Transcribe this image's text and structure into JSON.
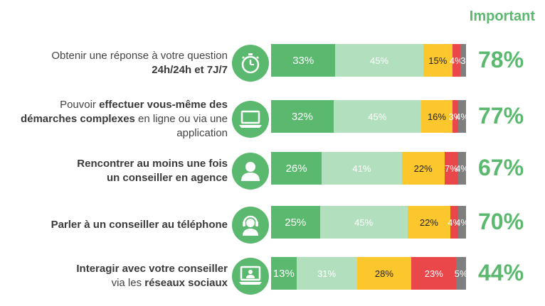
{
  "header": {
    "important": "Important"
  },
  "chart_data": {
    "type": "bar",
    "orientation": "horizontal-stacked",
    "categories": [
      "Obtenir une réponse à votre question 24h/24h et 7J/7",
      "Pouvoir effectuer vous-même des démarches complexes en ligne ou via une application",
      "Rencontrer au moins une fois un conseiller en agence",
      "Parler à un conseiller au téléphone",
      "Interagir avec votre conseiller via les réseaux sociaux"
    ],
    "series": [
      {
        "color": "#5bb96f",
        "values": [
          33,
          32,
          26,
          25,
          13
        ]
      },
      {
        "color": "#b2dfbd",
        "values": [
          45,
          45,
          41,
          45,
          31
        ]
      },
      {
        "color": "#fcc72c",
        "values": [
          15,
          16,
          22,
          22,
          28
        ]
      },
      {
        "color": "#e9474a",
        "values": [
          4,
          3,
          7,
          4,
          23
        ]
      },
      {
        "color": "#7f7f7f",
        "values": [
          3,
          4,
          4,
          4,
          5
        ]
      }
    ],
    "important_totals": [
      "78%",
      "77%",
      "67%",
      "70%",
      "44%"
    ]
  },
  "rows": [
    {
      "label_parts": [
        {
          "t": "Obtenir une réponse à votre question",
          "b": false
        },
        {
          "br": true
        },
        {
          "t": "24h/24h et 7J/7",
          "b": true
        }
      ],
      "icon": "stopwatch-icon",
      "labels": [
        "33%",
        "45%",
        "15%",
        "4%",
        "3"
      ]
    },
    {
      "label_parts": [
        {
          "t": "Pouvoir ",
          "b": false
        },
        {
          "t": "effectuer vous-même des",
          "b": true
        },
        {
          "br": true
        },
        {
          "t": "démarches complexes",
          "b": true
        },
        {
          "t": " en ligne ou via une",
          "b": false
        },
        {
          "br": true
        },
        {
          "t": "application",
          "b": false
        }
      ],
      "icon": "laptop-icon",
      "labels": [
        "32%",
        "45%",
        "16%",
        "3%",
        "4%"
      ]
    },
    {
      "label_parts": [
        {
          "t": "Rencontrer au moins une fois",
          "b": true
        },
        {
          "br": true
        },
        {
          "t": "un conseiller en agence",
          "b": true
        }
      ],
      "icon": "person-icon",
      "labels": [
        "26%",
        "41%",
        "22%",
        "7%",
        "4%"
      ]
    },
    {
      "label_parts": [
        {
          "t": "Parler à un conseiller au téléphone",
          "b": true
        }
      ],
      "icon": "headset-icon",
      "labels": [
        "25%",
        "45%",
        "22%",
        "4%",
        "4%"
      ]
    },
    {
      "label_parts": [
        {
          "t": "Interagir avec votre conseiller",
          "b": true
        },
        {
          "br": true
        },
        {
          "t": "via les ",
          "b": false
        },
        {
          "t": "réseaux sociaux",
          "b": true
        }
      ],
      "icon": "video-call-icon",
      "labels": [
        "13%",
        "31%",
        "28%",
        "23%",
        "5%"
      ]
    }
  ]
}
